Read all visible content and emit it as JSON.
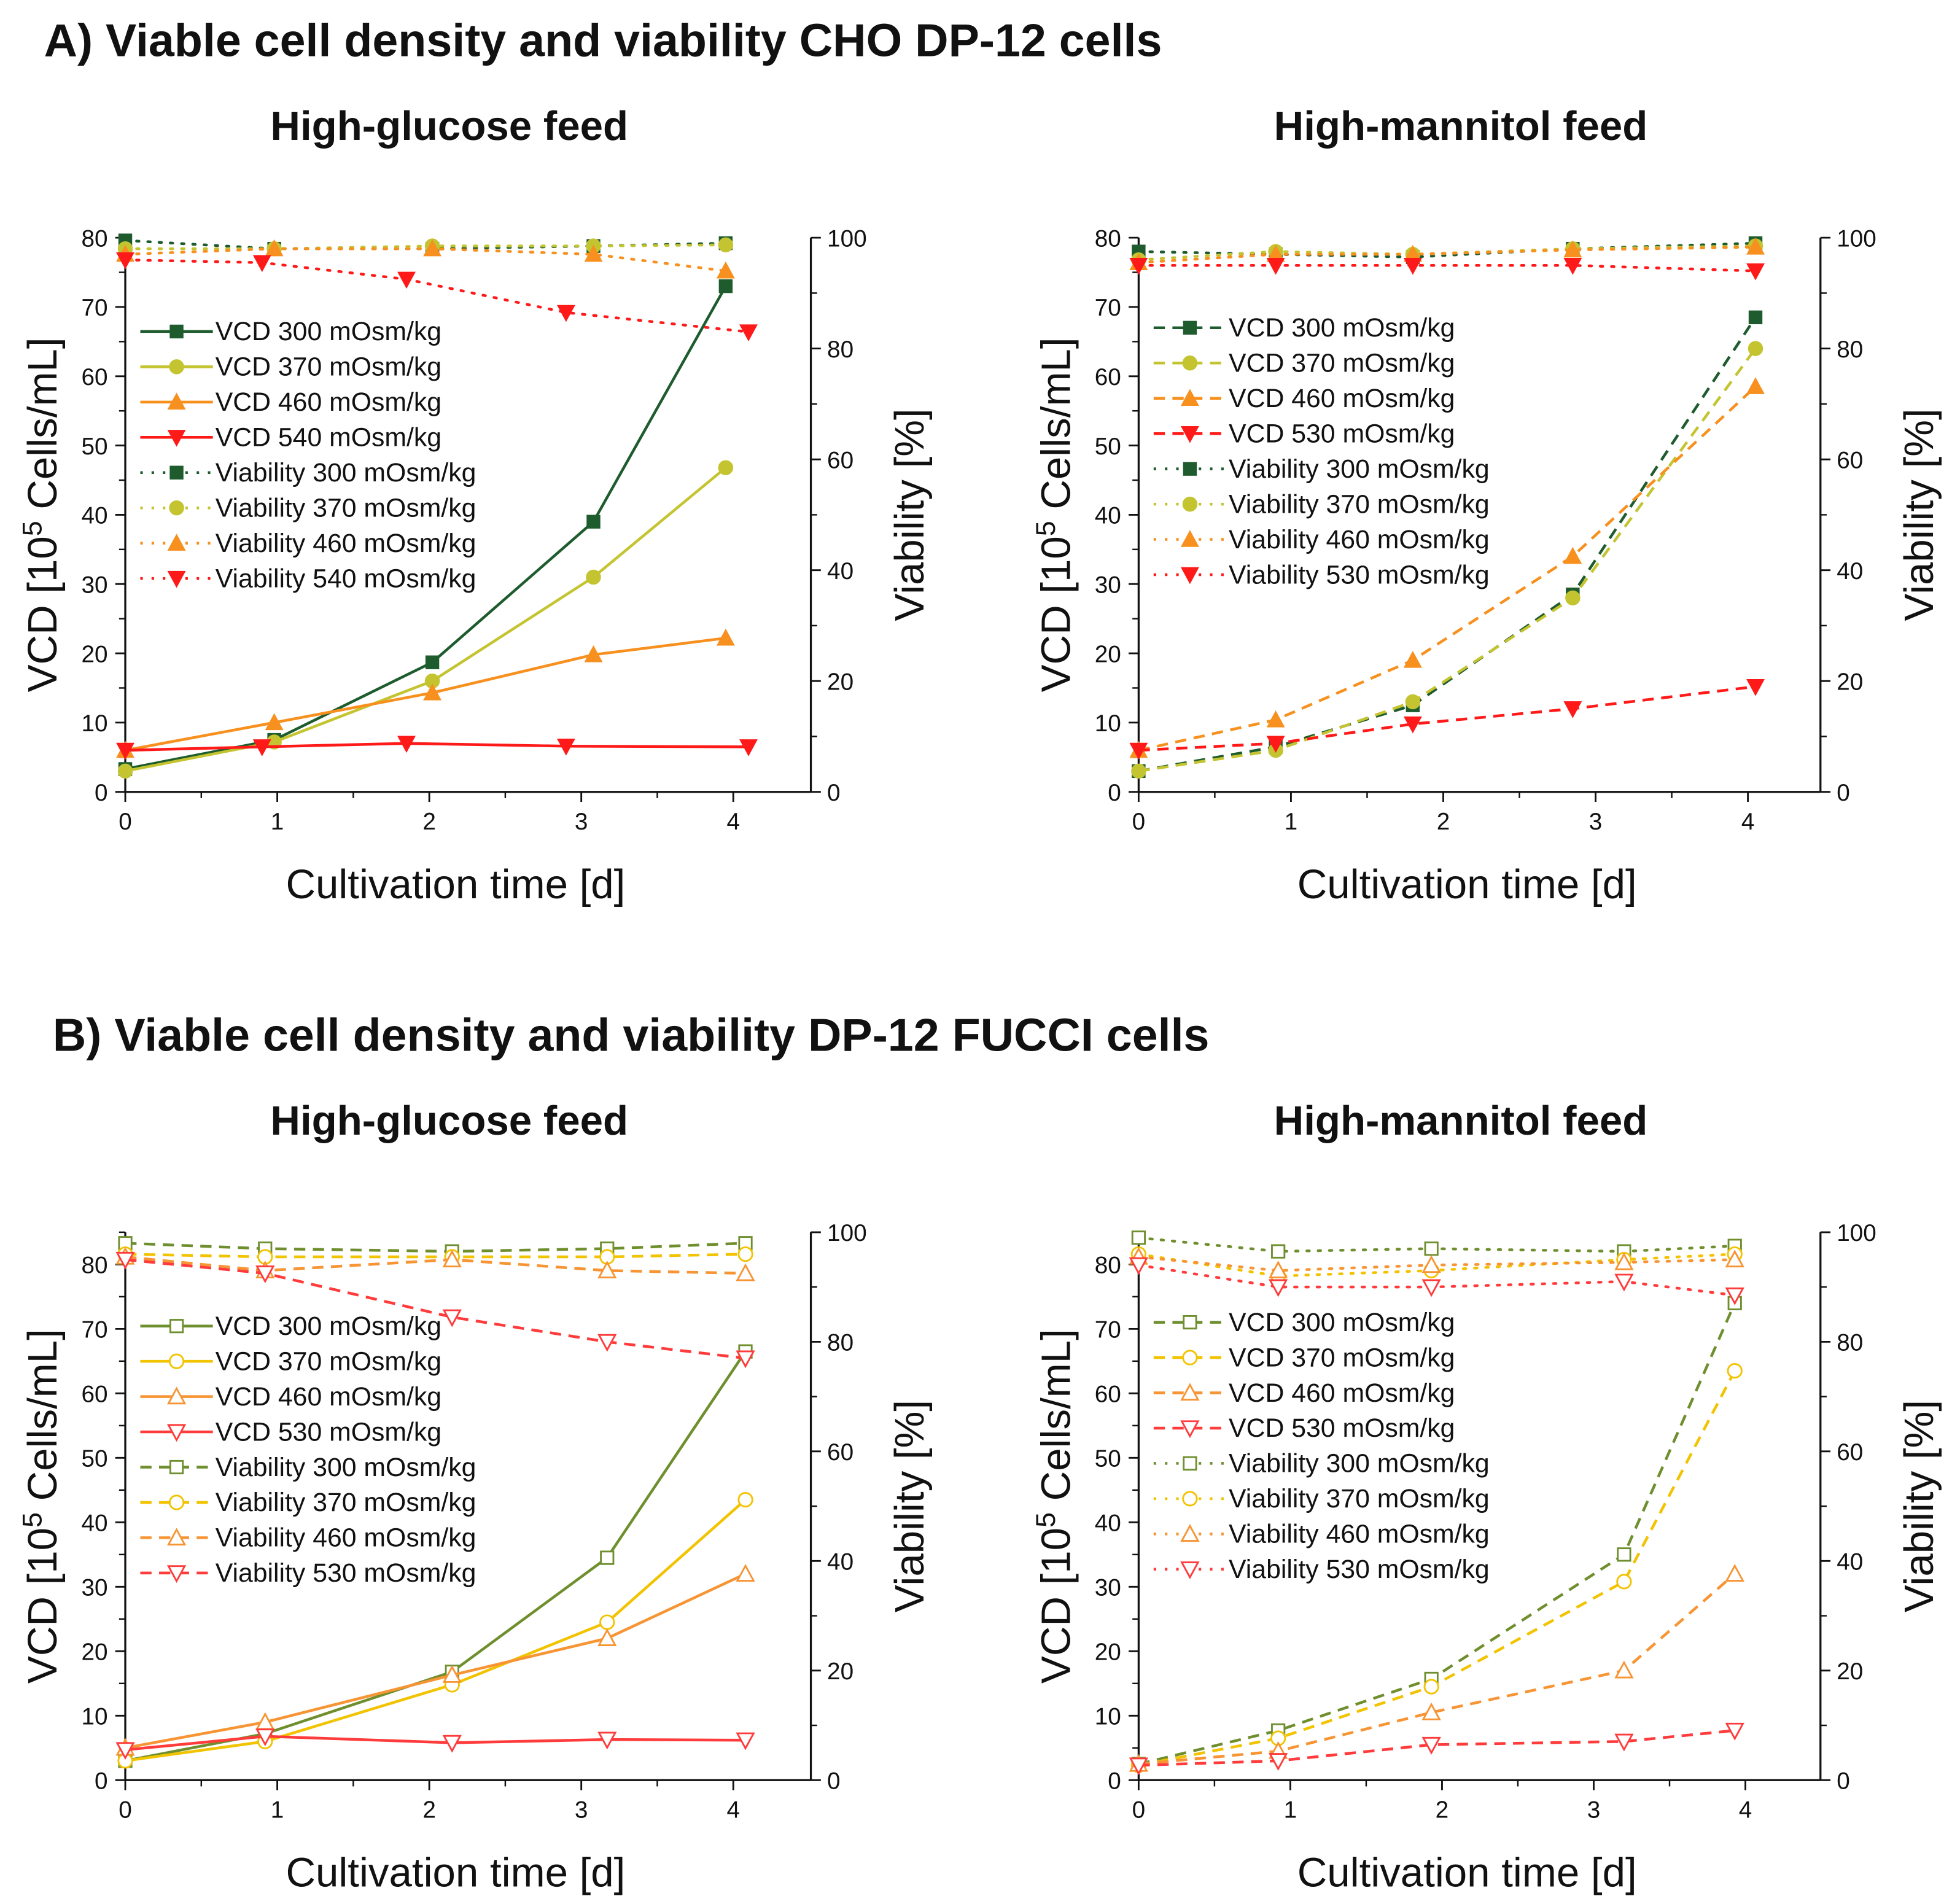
{
  "section_a_title": "A) Viable cell density and viability CHO DP-12 cells",
  "section_b_title": "B) Viable cell density and viability DP-12 FUCCI cells",
  "chart_data": [
    {
      "id": "A-glucose",
      "type": "line",
      "title": "High-glucose feed",
      "xlabel": "Cultivation time [d]",
      "ylabel": "VCD [10^5 Cells/mL]",
      "y2label": "Viability [%]",
      "xlim": [
        0,
        4.5
      ],
      "xticks": [
        0,
        1,
        2,
        3,
        4
      ],
      "ylim": [
        0,
        80
      ],
      "yticks": [
        0,
        10,
        20,
        30,
        40,
        50,
        60,
        70,
        80
      ],
      "y2lim": [
        0,
        100
      ],
      "y2ticks": [
        0,
        20,
        40,
        60,
        80,
        100
      ],
      "legend": "upper-left",
      "markers_filled": true,
      "vcd_style": "solid",
      "viability_style": "dotted",
      "series": [
        {
          "name": "VCD 300 mOsm/kg",
          "axis": "left",
          "marker": "square",
          "color": "#1e5c2e",
          "x": [
            0,
            0.98,
            2.02,
            3.08,
            3.95
          ],
          "y": [
            3.3,
            7.5,
            18.7,
            39,
            73
          ]
        },
        {
          "name": "VCD 370 mOsm/kg",
          "axis": "left",
          "marker": "circle",
          "color": "#c4c431",
          "x": [
            0,
            0.98,
            2.02,
            3.08,
            3.95
          ],
          "y": [
            3,
            7.2,
            16,
            31,
            46.8
          ]
        },
        {
          "name": "VCD 460 mOsm/kg",
          "axis": "left",
          "marker": "triangle-up",
          "color": "#f7901e",
          "x": [
            0,
            0.98,
            2.02,
            3.08,
            3.95
          ],
          "y": [
            6,
            10,
            14.3,
            19.8,
            22.2
          ]
        },
        {
          "name": "VCD 540 mOsm/kg",
          "axis": "left",
          "marker": "triangle-down",
          "color": "#ff1a1a",
          "x": [
            0,
            0.9,
            1.85,
            2.9,
            4.1
          ],
          "y": [
            6,
            6.5,
            7,
            6.6,
            6.5
          ]
        },
        {
          "name": "Viability 300 mOsm/kg",
          "axis": "right",
          "marker": "square",
          "color": "#1e5c2e",
          "x": [
            0,
            0.98,
            2.02,
            3.08,
            3.95
          ],
          "y": [
            99.5,
            98,
            98,
            98.5,
            99
          ]
        },
        {
          "name": "Viability 370 mOsm/kg",
          "axis": "right",
          "marker": "circle",
          "color": "#c4c431",
          "x": [
            0,
            0.98,
            2.02,
            3.08,
            3.95
          ],
          "y": [
            98,
            98,
            98.5,
            98.5,
            98.7
          ]
        },
        {
          "name": "Viability 460 mOsm/kg",
          "axis": "right",
          "marker": "triangle-up",
          "color": "#f7901e",
          "x": [
            0,
            0.98,
            2.02,
            3.08,
            3.95
          ],
          "y": [
            97,
            98,
            98,
            97,
            94
          ]
        },
        {
          "name": "Viability 540 mOsm/kg",
          "axis": "right",
          "marker": "triangle-down",
          "color": "#ff1a1a",
          "x": [
            0,
            0.9,
            1.85,
            2.9,
            4.1
          ],
          "y": [
            96,
            95.5,
            92.5,
            86.5,
            83
          ]
        }
      ]
    },
    {
      "id": "A-mannitol",
      "type": "line",
      "title": "High-mannitol feed",
      "xlabel": "Cultivation time [d]",
      "ylabel": "VCD [10^5 Cells/mL]",
      "y2label": "Viability [%]",
      "xlim": [
        0,
        4.5
      ],
      "xticks": [
        0,
        1,
        2,
        3,
        4
      ],
      "ylim": [
        0,
        80
      ],
      "yticks": [
        0,
        10,
        20,
        30,
        40,
        50,
        60,
        70,
        80
      ],
      "y2lim": [
        0,
        100
      ],
      "y2ticks": [
        0,
        20,
        40,
        60,
        80,
        100
      ],
      "legend": "upper-left",
      "markers_filled": true,
      "vcd_style": "dashed",
      "viability_style": "dotted",
      "series": [
        {
          "name": "VCD 300 mOsm/kg",
          "axis": "left",
          "marker": "square",
          "color": "#1e5c2e",
          "x": [
            0,
            0.9,
            1.8,
            2.85,
            4.05
          ],
          "y": [
            3,
            6.5,
            12.5,
            28.5,
            68.5
          ]
        },
        {
          "name": "VCD 370 mOsm/kg",
          "axis": "left",
          "marker": "circle",
          "color": "#c4c431",
          "x": [
            0,
            0.9,
            1.8,
            2.85,
            4.05
          ],
          "y": [
            3,
            6,
            13,
            28,
            64
          ]
        },
        {
          "name": "VCD 460 mOsm/kg",
          "axis": "left",
          "marker": "triangle-up",
          "color": "#f7901e",
          "x": [
            0,
            0.9,
            1.8,
            2.85,
            4.05
          ],
          "y": [
            6,
            10.4,
            19,
            34,
            58.5
          ]
        },
        {
          "name": "VCD 530 mOsm/kg",
          "axis": "left",
          "marker": "triangle-down",
          "color": "#ff1a1a",
          "x": [
            0,
            0.9,
            1.8,
            2.85,
            4.05
          ],
          "y": [
            6,
            7,
            9.8,
            12,
            15.2
          ]
        },
        {
          "name": "Viability 300 mOsm/kg",
          "axis": "right",
          "marker": "square",
          "color": "#1e5c2e",
          "x": [
            0,
            0.9,
            1.8,
            2.85,
            4.05
          ],
          "y": [
            97.5,
            97,
            96.5,
            98,
            99
          ]
        },
        {
          "name": "Viability 370 mOsm/kg",
          "axis": "right",
          "marker": "circle",
          "color": "#c4c431",
          "x": [
            0,
            0.9,
            1.8,
            2.85,
            4.05
          ],
          "y": [
            96,
            97.5,
            97,
            98,
            98.5
          ]
        },
        {
          "name": "Viability 460 mOsm/kg",
          "axis": "right",
          "marker": "triangle-up",
          "color": "#f7901e",
          "x": [
            0,
            0.9,
            1.8,
            2.85,
            4.05
          ],
          "y": [
            95.5,
            97,
            97,
            97.8,
            98.3
          ]
        },
        {
          "name": "Viability 530 mOsm/kg",
          "axis": "right",
          "marker": "triangle-down",
          "color": "#ff1a1a",
          "x": [
            0,
            0.9,
            1.8,
            2.85,
            4.05
          ],
          "y": [
            95,
            95,
            95,
            95,
            94
          ]
        }
      ]
    },
    {
      "id": "B-glucose",
      "type": "line",
      "title": "High-glucose feed",
      "xlabel": "Cultivation time [d]",
      "ylabel": "VCD [10^5 Cells/mL]",
      "y2label": "Viability [%]",
      "xlim": [
        0,
        4.5
      ],
      "xticks": [
        0,
        1,
        2,
        3,
        4
      ],
      "ylim": [
        0,
        85
      ],
      "yticks": [
        0,
        10,
        20,
        30,
        40,
        50,
        60,
        70,
        80
      ],
      "y2lim": [
        0,
        100
      ],
      "y2ticks": [
        0,
        20,
        40,
        60,
        80,
        100
      ],
      "legend": "upper-left",
      "markers_filled": false,
      "vcd_style": "solid",
      "viability_style": "dashed",
      "series": [
        {
          "name": "VCD 300 mOsm/kg",
          "axis": "left",
          "marker": "square",
          "color": "#6f8f2f",
          "x": [
            0,
            0.92,
            2.15,
            3.17,
            4.08
          ],
          "y": [
            3,
            7.2,
            16.8,
            34.5,
            66.5
          ]
        },
        {
          "name": "VCD 370 mOsm/kg",
          "axis": "left",
          "marker": "circle",
          "color": "#f2c300",
          "x": [
            0,
            0.92,
            2.15,
            3.17,
            4.08
          ],
          "y": [
            3,
            6,
            14.8,
            24.5,
            43.5
          ]
        },
        {
          "name": "VCD 460 mOsm/kg",
          "axis": "left",
          "marker": "triangle-up",
          "color": "#f79433",
          "x": [
            0,
            0.92,
            2.15,
            3.17,
            4.08
          ],
          "y": [
            5,
            9,
            16.3,
            22,
            32
          ]
        },
        {
          "name": "VCD 530 mOsm/kg",
          "axis": "left",
          "marker": "triangle-down",
          "color": "#ff3b3b",
          "x": [
            0,
            0.92,
            2.15,
            3.17,
            4.08
          ],
          "y": [
            4.7,
            6.8,
            5.8,
            6.3,
            6.2
          ]
        },
        {
          "name": "Viability 300 mOsm/kg",
          "axis": "right",
          "marker": "square",
          "color": "#6f8f2f",
          "x": [
            0,
            0.92,
            2.15,
            3.17,
            4.08
          ],
          "y": [
            98,
            97,
            96.5,
            97,
            98
          ]
        },
        {
          "name": "Viability 370 mOsm/kg",
          "axis": "right",
          "marker": "circle",
          "color": "#f2c300",
          "x": [
            0,
            0.92,
            2.15,
            3.17,
            4.08
          ],
          "y": [
            96,
            95.5,
            95.5,
            95.5,
            96
          ]
        },
        {
          "name": "Viability 460 mOsm/kg",
          "axis": "right",
          "marker": "triangle-up",
          "color": "#f79433",
          "x": [
            0,
            0.92,
            2.15,
            3.17,
            4.08
          ],
          "y": [
            95.5,
            93,
            95,
            93,
            92.5
          ]
        },
        {
          "name": "Viability 530 mOsm/kg",
          "axis": "right",
          "marker": "triangle-down",
          "color": "#ff3b3b",
          "x": [
            0,
            0.92,
            2.15,
            3.17,
            4.08
          ],
          "y": [
            95,
            92.5,
            84.5,
            80,
            77
          ]
        }
      ]
    },
    {
      "id": "B-mannitol",
      "type": "line",
      "title": "High-mannitol feed",
      "xlabel": "Cultivation time [d]",
      "ylabel": "VCD [10^5 Cells/mL]",
      "y2label": "Viability [%]",
      "xlim": [
        0,
        4.5
      ],
      "xticks": [
        0,
        1,
        2,
        3,
        4
      ],
      "ylim": [
        0,
        85
      ],
      "yticks": [
        0,
        10,
        20,
        30,
        40,
        50,
        60,
        70,
        80
      ],
      "y2lim": [
        0,
        100
      ],
      "y2ticks": [
        0,
        20,
        40,
        60,
        80,
        100
      ],
      "legend": "upper-left",
      "markers_filled": false,
      "vcd_style": "dashed",
      "viability_style": "dotted",
      "series": [
        {
          "name": "VCD 300 mOsm/kg",
          "axis": "left",
          "marker": "square",
          "color": "#6f8f2f",
          "x": [
            0,
            0.92,
            1.93,
            3.2,
            3.93
          ],
          "y": [
            2.5,
            7.7,
            15.7,
            35,
            74
          ]
        },
        {
          "name": "VCD 370 mOsm/kg",
          "axis": "left",
          "marker": "circle",
          "color": "#f2c300",
          "x": [
            0,
            0.92,
            1.93,
            3.2,
            3.93
          ],
          "y": [
            2.3,
            6.5,
            14.5,
            30.8,
            63.5
          ]
        },
        {
          "name": "VCD 460 mOsm/kg",
          "axis": "left",
          "marker": "triangle-up",
          "color": "#f79433",
          "x": [
            0,
            0.92,
            1.93,
            3.2,
            3.93
          ],
          "y": [
            2.5,
            4.5,
            10.5,
            17,
            32
          ]
        },
        {
          "name": "VCD 530 mOsm/kg",
          "axis": "left",
          "marker": "triangle-down",
          "color": "#ff3b3b",
          "x": [
            0,
            0.92,
            1.93,
            3.2,
            3.93
          ],
          "y": [
            2.3,
            3,
            5.5,
            6,
            7.7
          ]
        },
        {
          "name": "Viability 300 mOsm/kg",
          "axis": "right",
          "marker": "square",
          "color": "#6f8f2f",
          "x": [
            0,
            0.92,
            1.93,
            3.2,
            3.93
          ],
          "y": [
            99,
            96.5,
            97,
            96.5,
            97.5
          ]
        },
        {
          "name": "Viability 370 mOsm/kg",
          "axis": "right",
          "marker": "circle",
          "color": "#f2c300",
          "x": [
            0,
            0.92,
            1.93,
            3.2,
            3.93
          ],
          "y": [
            96,
            92,
            93,
            95,
            96
          ]
        },
        {
          "name": "Viability 460 mOsm/kg",
          "axis": "right",
          "marker": "triangle-up",
          "color": "#f79433",
          "x": [
            0,
            0.92,
            1.93,
            3.2,
            3.93
          ],
          "y": [
            95.5,
            93,
            94,
            94.5,
            95
          ]
        },
        {
          "name": "Viability 530 mOsm/kg",
          "axis": "right",
          "marker": "triangle-down",
          "color": "#ff3b3b",
          "x": [
            0,
            0.92,
            1.93,
            3.2,
            3.93
          ],
          "y": [
            94,
            90,
            90,
            91,
            88.5
          ]
        }
      ]
    }
  ]
}
